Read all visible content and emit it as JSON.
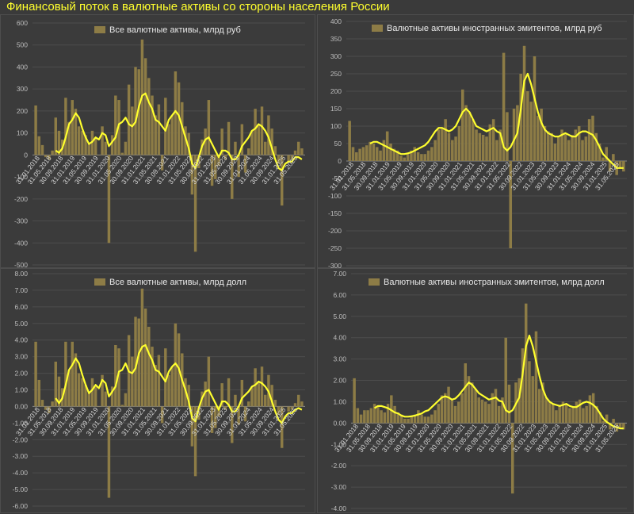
{
  "title": "Финансовый поток в валютные активы со стороны населения России",
  "colors": {
    "bar": "#8d7c46",
    "line": "#ffff2e",
    "background": "#3b3b3b",
    "title": "#ffff2e"
  },
  "chart_data": [
    {
      "type": "bar",
      "legend": "Все валютные активы, млрд руб",
      "ylim": [
        -500,
        600
      ],
      "yticks": [
        "600",
        "500",
        "400",
        "300",
        "200",
        "100",
        "0",
        "-100",
        "-200",
        "-300",
        "-400",
        "-500"
      ],
      "ytick_values": [
        600,
        500,
        400,
        300,
        200,
        100,
        0,
        -100,
        -200,
        -300,
        -400,
        -500
      ],
      "xticks": [
        "31.01.2018",
        "31.05.2018",
        "30.09.2018",
        "31.01.2019",
        "31.05.2019",
        "30.09.2019",
        "31.01.2020",
        "31.05.2020",
        "30.09.2020",
        "31.01.2021",
        "31.05.2021",
        "30.09.2021",
        "31.01.2022",
        "31.05.2022",
        "30.09.2022",
        "31.01.2023",
        "31.05.2023",
        "30.09.2023",
        "31.01.2024",
        "31.05.2024",
        "30.09.2024",
        "31.01.2025",
        "31.05.2025"
      ],
      "bar_series": {
        "name": "Все валютные активы, млрд руб",
        "values": [
          225,
          85,
          45,
          -10,
          -20,
          20,
          170,
          110,
          70,
          260,
          150,
          250,
          210,
          130,
          110,
          90,
          50,
          110,
          80,
          0,
          130,
          60,
          -400,
          90,
          270,
          250,
          10,
          60,
          320,
          220,
          400,
          390,
          525,
          440,
          350,
          270,
          180,
          230,
          -70,
          260,
          140,
          180,
          380,
          330,
          240,
          130,
          100,
          -180,
          -440,
          -60,
          70,
          120,
          250,
          -140,
          -110,
          -50,
          120,
          -20,
          150,
          -200,
          60,
          -100,
          140,
          -80,
          30,
          110,
          210,
          140,
          220,
          60,
          180,
          120,
          40,
          -40,
          -230,
          0,
          -30,
          -20,
          20,
          60,
          30
        ]
      },
      "line_series": {
        "name": "",
        "values": [
          null,
          null,
          null,
          null,
          null,
          null,
          20,
          10,
          30,
          80,
          140,
          160,
          190,
          170,
          120,
          80,
          50,
          60,
          80,
          70,
          100,
          90,
          40,
          60,
          80,
          140,
          150,
          170,
          140,
          130,
          150,
          220,
          270,
          280,
          240,
          210,
          160,
          150,
          130,
          110,
          160,
          180,
          200,
          180,
          130,
          80,
          30,
          -40,
          -60,
          -10,
          40,
          70,
          80,
          50,
          20,
          -10,
          20,
          20,
          10,
          -20,
          -20,
          0,
          40,
          60,
          80,
          110,
          120,
          140,
          130,
          110,
          80,
          30,
          -20,
          -60,
          -70,
          -40,
          -30,
          -30,
          -10,
          -10,
          -20
        ]
      }
    },
    {
      "type": "bar",
      "legend": "Валютные активы иностранных эмитентов, млрд руб",
      "ylim": [
        -300,
        400
      ],
      "yticks": [
        "400",
        "350",
        "300",
        "250",
        "200",
        "150",
        "100",
        "50",
        "0",
        "-50",
        "-100",
        "-150",
        "-200",
        "-250",
        "-300"
      ],
      "ytick_values": [
        400,
        350,
        300,
        250,
        200,
        150,
        100,
        50,
        0,
        -50,
        -100,
        -150,
        -200,
        -250,
        -300
      ],
      "xticks": [
        "31.01.2018",
        "31.05.2018",
        "30.09.2018",
        "31.01.2019",
        "31.05.2019",
        "30.09.2019",
        "31.01.2020",
        "31.05.2020",
        "30.09.2020",
        "31.01.2021",
        "31.05.2021",
        "30.09.2021",
        "31.01.2022",
        "31.05.2022",
        "30.09.2022",
        "31.01.2023",
        "31.05.2023",
        "30.09.2023",
        "31.01.2024",
        "31.05.2024",
        "30.09.2024",
        "31.01.2025",
        "31.05.2025"
      ],
      "bar_series": {
        "name": "Валютные активы иностранных эмитентов, млрд руб",
        "values": [
          115,
          40,
          25,
          35,
          40,
          45,
          55,
          50,
          40,
          30,
          60,
          85,
          50,
          35,
          30,
          15,
          10,
          20,
          30,
          40,
          25,
          20,
          20,
          30,
          40,
          60,
          90,
          95,
          120,
          80,
          60,
          70,
          100,
          205,
          160,
          140,
          120,
          90,
          80,
          75,
          70,
          105,
          120,
          60,
          90,
          310,
          140,
          -250,
          150,
          160,
          250,
          330,
          200,
          170,
          300,
          130,
          150,
          100,
          85,
          80,
          50,
          70,
          90,
          80,
          60,
          75,
          90,
          100,
          60,
          70,
          120,
          130,
          80,
          50,
          10,
          40,
          -30,
          20,
          -40,
          -20,
          -30
        ]
      },
      "line_series": {
        "name": "",
        "values": [
          null,
          null,
          null,
          null,
          null,
          null,
          50,
          55,
          55,
          50,
          45,
          40,
          35,
          30,
          25,
          20,
          20,
          22,
          25,
          30,
          35,
          40,
          45,
          55,
          70,
          85,
          95,
          95,
          90,
          85,
          90,
          100,
          120,
          140,
          150,
          140,
          120,
          100,
          95,
          90,
          85,
          90,
          95,
          85,
          80,
          40,
          30,
          40,
          60,
          80,
          150,
          230,
          250,
          220,
          180,
          140,
          110,
          90,
          80,
          75,
          70,
          70,
          75,
          80,
          75,
          70,
          70,
          80,
          85,
          85,
          80,
          75,
          60,
          40,
          20,
          10,
          0,
          -10,
          -20,
          -20,
          -20
        ]
      }
    },
    {
      "type": "bar",
      "legend": "Все валютные активы, млрд долл",
      "ylim": [
        -6,
        8
      ],
      "yticks": [
        "8.00",
        "7.00",
        "6.00",
        "5.00",
        "4.00",
        "3.00",
        "2.00",
        "1.00",
        "0.00",
        "-1.00",
        "-2.00",
        "-3.00",
        "-4.00",
        "-5.00",
        "-6.00"
      ],
      "ytick_values": [
        8,
        7,
        6,
        5,
        4,
        3,
        2,
        1,
        0,
        -1,
        -2,
        -3,
        -4,
        -5,
        -6
      ],
      "xticks": [
        "31.01.2018",
        "31.05.2018",
        "30.09.2018",
        "31.01.2019",
        "31.05.2019",
        "30.09.2019",
        "31.01.2020",
        "31.05.2020",
        "30.09.2020",
        "31.01.2021",
        "31.05.2021",
        "30.09.2021",
        "31.01.2022",
        "31.05.2022",
        "30.09.2022",
        "31.01.2023",
        "31.05.2023",
        "30.09.2023",
        "31.01.2024",
        "31.05.2024",
        "30.09.2024",
        "31.01.2025",
        "31.05.2025"
      ],
      "bar_series": {
        "name": "Все валютные активы, млрд долл",
        "values": [
          3.9,
          1.6,
          0.4,
          -0.2,
          -0.4,
          0.3,
          2.7,
          1.8,
          1.1,
          3.9,
          2.2,
          3.9,
          3.2,
          2.0,
          1.7,
          1.3,
          0.8,
          1.7,
          1.2,
          0.0,
          1.9,
          0.9,
          -5.5,
          1.2,
          3.7,
          3.5,
          0.1,
          0.8,
          4.3,
          3.0,
          5.4,
          5.3,
          7.1,
          5.9,
          4.8,
          3.6,
          2.5,
          3.1,
          -1.0,
          3.5,
          1.9,
          2.4,
          5.0,
          4.4,
          3.2,
          1.7,
          1.3,
          -2.4,
          -4.2,
          -0.8,
          0.9,
          1.5,
          3.0,
          -1.6,
          -1.3,
          -0.6,
          1.4,
          -0.2,
          1.7,
          -2.2,
          0.7,
          -1.1,
          1.6,
          -0.9,
          0.3,
          1.2,
          2.3,
          1.5,
          2.4,
          0.7,
          1.9,
          1.3,
          0.4,
          -0.5,
          -2.5,
          0.0,
          -0.3,
          -0.2,
          0.2,
          0.7,
          0.3
        ]
      },
      "line_series": {
        "name": "",
        "values": [
          null,
          null,
          null,
          null,
          null,
          null,
          0.5,
          0.2,
          0.5,
          1.3,
          2.2,
          2.5,
          2.9,
          2.6,
          1.9,
          1.3,
          0.8,
          1.0,
          1.3,
          1.1,
          1.6,
          1.4,
          0.6,
          0.9,
          1.2,
          2.1,
          2.2,
          2.6,
          2.1,
          2.0,
          2.3,
          3.2,
          3.6,
          3.7,
          3.2,
          2.8,
          2.2,
          2.1,
          1.8,
          1.5,
          2.1,
          2.4,
          2.6,
          2.3,
          1.6,
          1.0,
          0.3,
          -0.7,
          -0.9,
          -0.1,
          0.5,
          0.9,
          1.0,
          0.6,
          0.2,
          -0.2,
          0.3,
          0.3,
          0.1,
          -0.3,
          -0.3,
          0.0,
          0.5,
          0.7,
          0.9,
          1.2,
          1.3,
          1.5,
          1.4,
          1.2,
          0.9,
          0.3,
          -0.3,
          -0.8,
          -1.0,
          -0.6,
          -0.4,
          -0.4,
          -0.2,
          -0.1,
          -0.2
        ]
      }
    },
    {
      "type": "bar",
      "legend": "Валютные активы иностранных эмитентов, млрд долл",
      "ylim": [
        -4,
        7
      ],
      "yticks": [
        "7.00",
        "6.00",
        "5.00",
        "4.00",
        "3.00",
        "2.00",
        "1.00",
        "0.00",
        "-1.00",
        "-2.00",
        "-3.00",
        "-4.00"
      ],
      "ytick_values": [
        7,
        6,
        5,
        4,
        3,
        2,
        1,
        0,
        -1,
        -2,
        -3,
        -4
      ],
      "xticks": [
        "31.01.2018",
        "31.05.2018",
        "30.09.2018",
        "31.01.2019",
        "31.05.2019",
        "30.09.2019",
        "31.01.2020",
        "31.05.2020",
        "30.09.2020",
        "31.01.2021",
        "31.05.2021",
        "30.09.2021",
        "31.01.2022",
        "31.05.2022",
        "30.09.2022",
        "31.01.2023",
        "31.05.2023",
        "30.09.2023",
        "31.01.2024",
        "31.05.2024",
        "30.09.2024",
        "31.01.2025",
        "31.05.2025"
      ],
      "bar_series": {
        "name": "Валютные активы иностранных эмитентов, млрд долл",
        "values": [
          2.1,
          0.7,
          0.4,
          0.6,
          0.6,
          0.7,
          0.9,
          0.8,
          0.6,
          0.5,
          0.9,
          1.3,
          0.8,
          0.5,
          0.4,
          0.2,
          0.2,
          0.3,
          0.4,
          0.6,
          0.4,
          0.3,
          0.3,
          0.4,
          0.6,
          0.9,
          1.3,
          1.4,
          1.7,
          1.1,
          0.8,
          1.0,
          1.4,
          2.8,
          2.2,
          1.9,
          1.6,
          1.2,
          1.1,
          1.0,
          0.9,
          1.4,
          1.6,
          0.8,
          1.2,
          4.0,
          1.8,
          -3.3,
          1.9,
          2.1,
          3.5,
          5.6,
          2.9,
          2.2,
          4.3,
          1.6,
          1.9,
          1.2,
          1.0,
          0.9,
          0.6,
          0.8,
          1.0,
          0.9,
          0.7,
          0.8,
          1.0,
          1.1,
          0.7,
          0.8,
          1.3,
          1.4,
          0.8,
          0.5,
          0.1,
          0.4,
          -0.3,
          0.2,
          -0.4,
          -0.2,
          -0.3
        ]
      },
      "line_series": {
        "name": "",
        "values": [
          null,
          null,
          null,
          null,
          null,
          null,
          0.7,
          0.8,
          0.8,
          0.75,
          0.7,
          0.6,
          0.5,
          0.45,
          0.35,
          0.3,
          0.3,
          0.32,
          0.35,
          0.4,
          0.45,
          0.55,
          0.6,
          0.75,
          0.9,
          1.05,
          1.2,
          1.25,
          1.2,
          1.1,
          1.15,
          1.3,
          1.5,
          1.7,
          1.9,
          1.8,
          1.6,
          1.4,
          1.3,
          1.2,
          1.1,
          1.15,
          1.2,
          1.05,
          1.0,
          0.6,
          0.5,
          0.6,
          0.9,
          1.2,
          2.3,
          3.6,
          4.1,
          3.6,
          2.9,
          2.2,
          1.6,
          1.2,
          1.0,
          0.9,
          0.85,
          0.8,
          0.85,
          0.9,
          0.8,
          0.75,
          0.75,
          0.85,
          0.95,
          1.0,
          0.95,
          0.85,
          0.7,
          0.45,
          0.2,
          0.05,
          -0.05,
          -0.15,
          -0.2,
          -0.25,
          -0.25
        ]
      }
    }
  ]
}
